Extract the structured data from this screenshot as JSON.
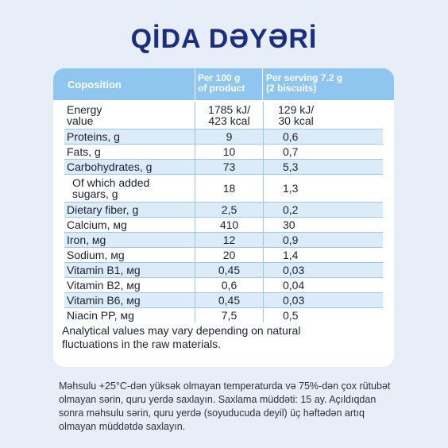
{
  "title": "QİDA DƏYƏRİ",
  "table": {
    "headers": {
      "composition": "Coposition",
      "per100_line1": "Per 100 g",
      "per100_line2": "of product",
      "serving_line1": "Per serving 7.2 g",
      "serving_line2": "(2 biscuits)"
    },
    "rows": [
      {
        "name": "Energy",
        "name2": "value",
        "per100": "1785 kJ/",
        "per100b": "423 kcal",
        "serving": "129 kJ/",
        "servingb": "30 kcal"
      },
      {
        "name": "Proteins, g",
        "per100": "9",
        "serving": "0,6"
      },
      {
        "name": "Fats, g",
        "per100": "10",
        "serving": "0,7"
      },
      {
        "name": "Carbohydrates, g",
        "per100": "73",
        "serving": "5,3"
      },
      {
        "name": "Of which added",
        "name2": "sugars, g",
        "per100": "18",
        "serving": "1,3"
      },
      {
        "name": "Dietary fiber, g",
        "per100": "2,5",
        "serving": "0,2"
      },
      {
        "name": "Calcium, мg",
        "per100": "410",
        "serving": "30"
      },
      {
        "name": "Iron, мg",
        "per100": "12",
        "serving": "0,9"
      },
      {
        "name": "Sodium, мg",
        "per100": "20",
        "serving": "1,4"
      },
      {
        "name": "Vitamin B1, мg",
        "per100": "0,45",
        "serving": "0,03"
      },
      {
        "name": "Vitamin B2, мg",
        "per100": "0,6",
        "serving": "0,04"
      },
      {
        "name": "Vitamin B6, мg",
        "per100": "0,45",
        "serving": "0,03"
      },
      {
        "name": "Niacin PP, мg",
        "per100": "7,5",
        "serving": "0,5"
      }
    ]
  },
  "note": "Analytical values may vary depending on natural fluctuations in the raw materials.",
  "storage": "Məhsulu +25°C-dən yüksək olmayan temperaturda və 75%-dən çox rütubət olmayan sərin, quru yerdə saxlayın. Saxlama müddəti: 15 ay. Açıldıqdan sonra məhsulu sərin, quru yerdə (soyuducuda deyil) üç həftədən artıq olmayan müddətdə saxlayın.",
  "colors": {
    "title": "#1a2f80",
    "header_bg": "#8ec6ef",
    "shade": "#dcebf8",
    "background": "#e7eef8"
  }
}
